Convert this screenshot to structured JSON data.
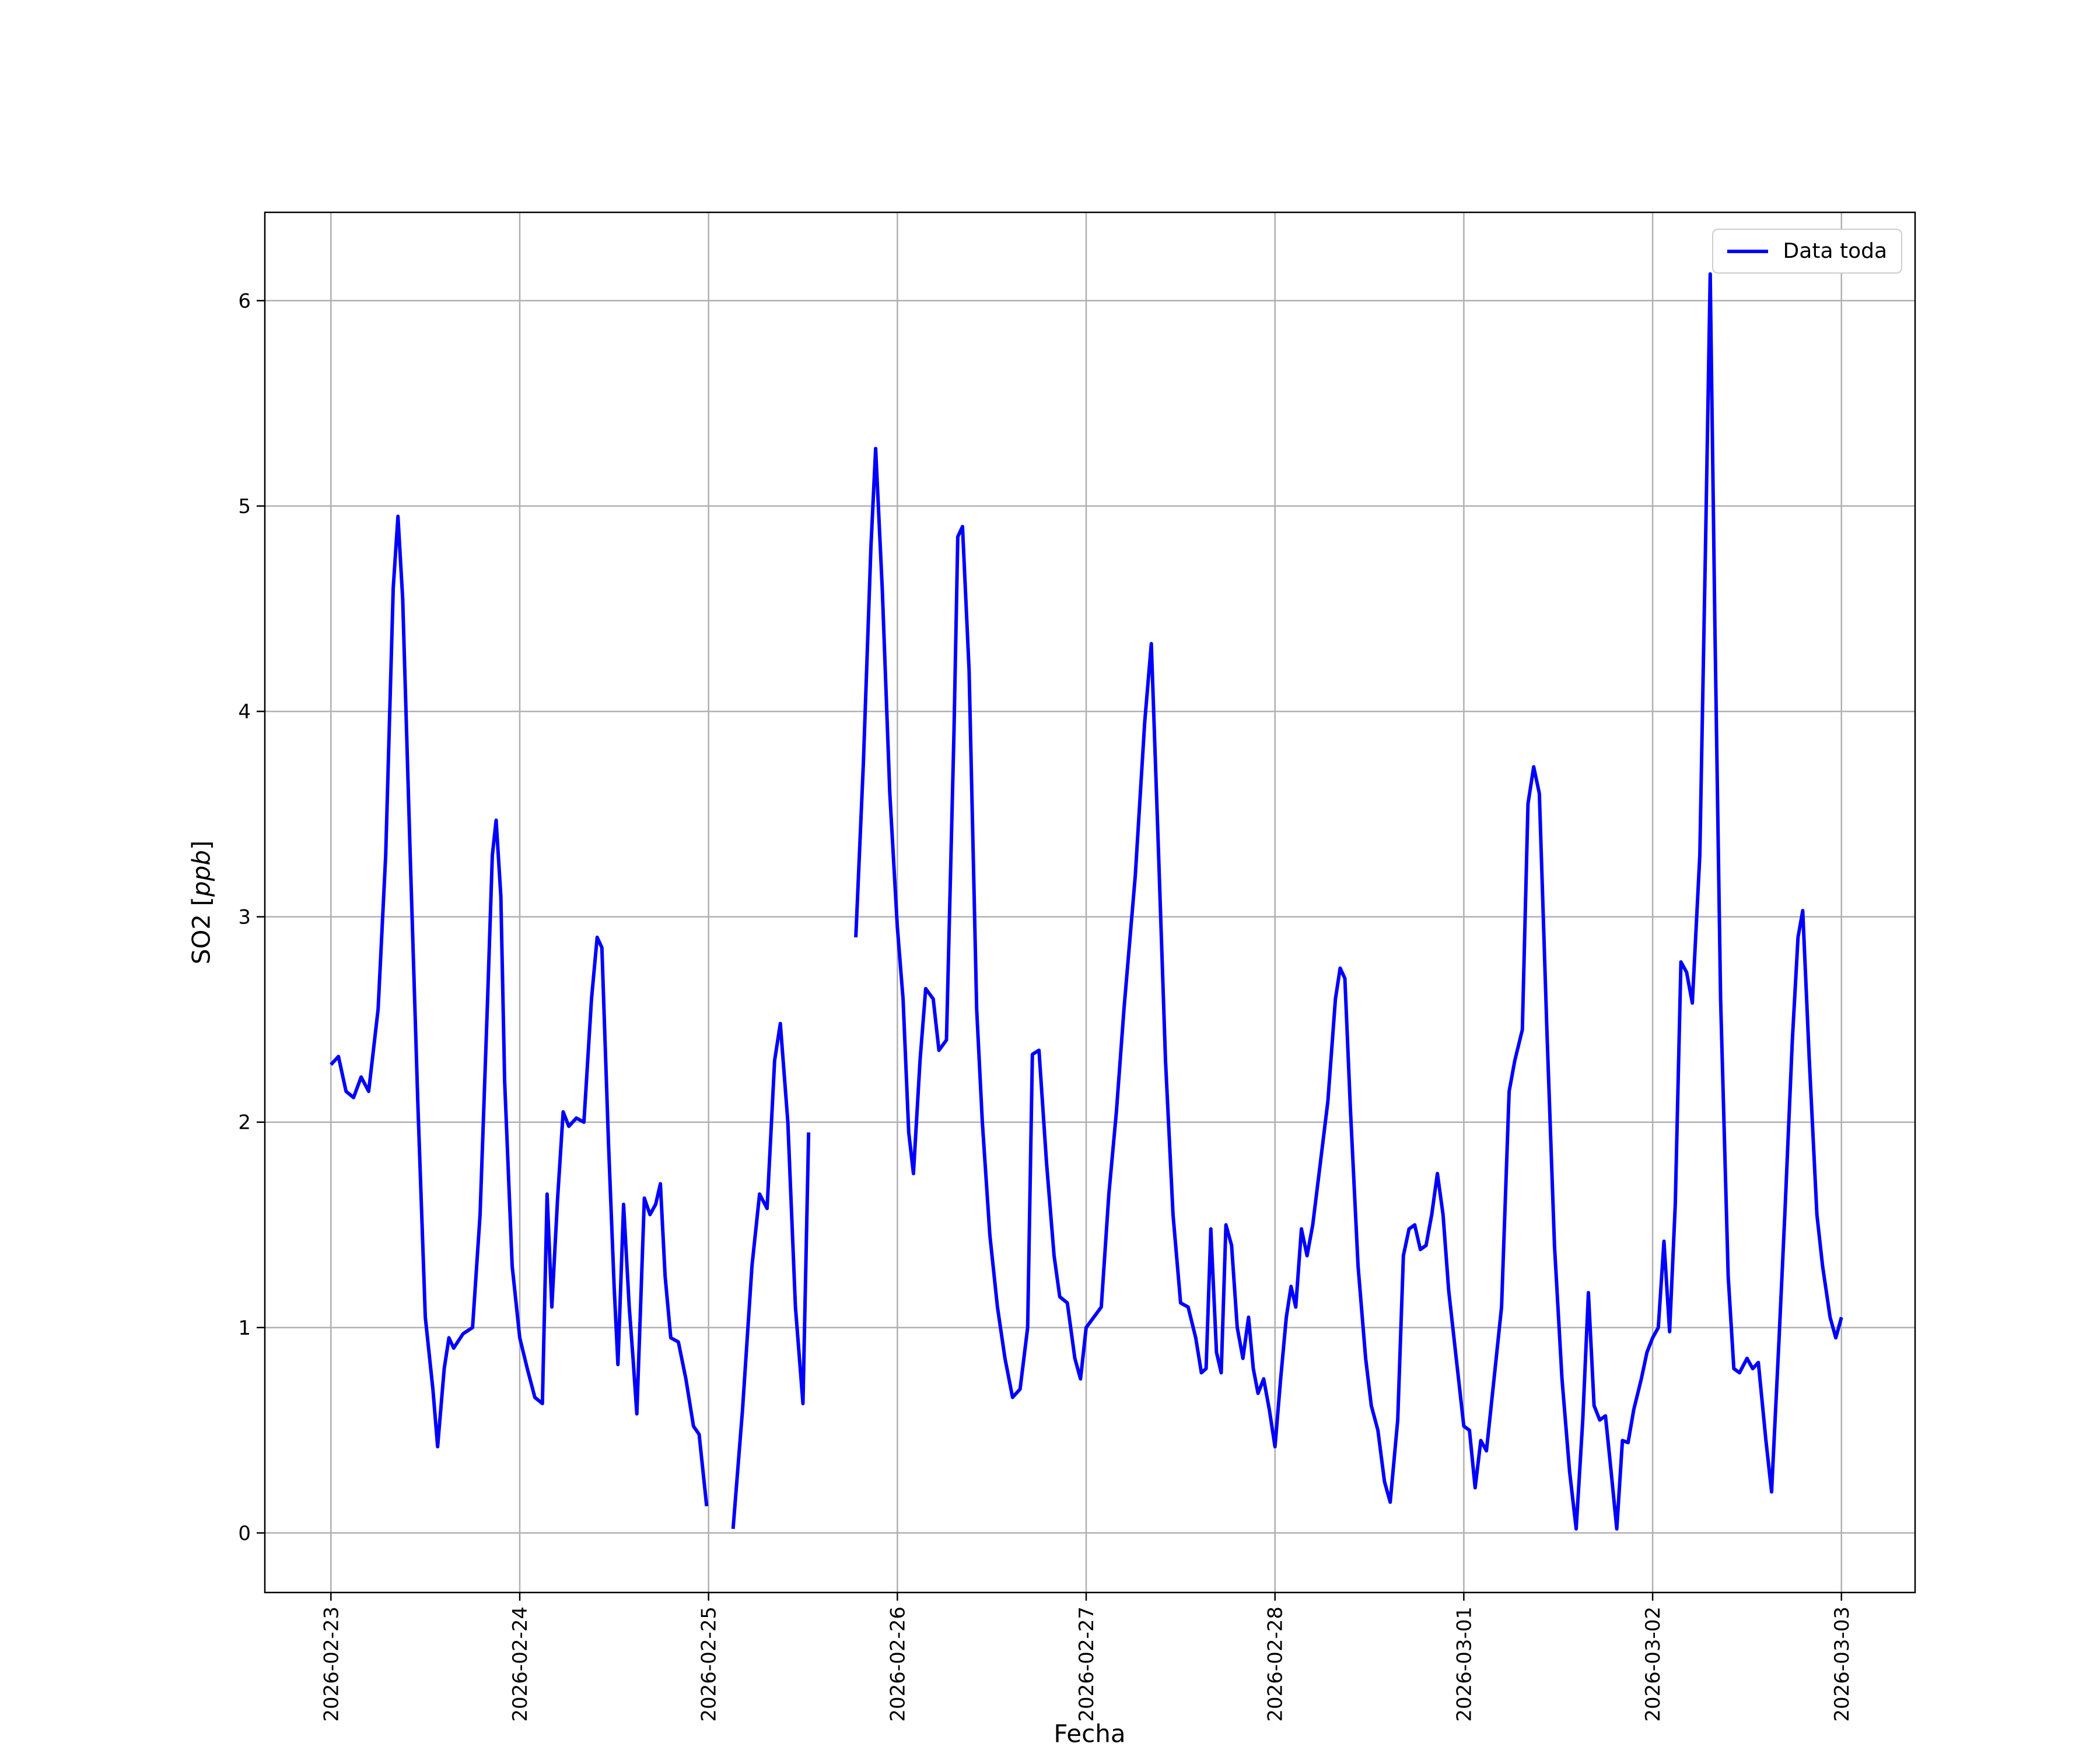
{
  "figure": {
    "background": "#ffffff",
    "xlabel": "Fecha",
    "ylabel_prefix": "SO2 [",
    "ylabel_italic": "ppb",
    "ylabel_suffix": "]"
  },
  "legend": {
    "label": "Data toda",
    "line_color": "#0000ff",
    "position": "upper right"
  },
  "chart_data": {
    "type": "line",
    "title": "",
    "xlabel": "Fecha",
    "ylabel": "SO2 [ppb]",
    "grid": true,
    "legend_position": "upper right",
    "xlim": [
      -0.35,
      8.39
    ],
    "ylim": [
      -0.29,
      6.43
    ],
    "x_ticks": {
      "positions": [
        0,
        1,
        2,
        3,
        4,
        5,
        6,
        7,
        8
      ],
      "labels": [
        "2026-02-23",
        "2026-02-24",
        "2026-02-25",
        "2026-02-26",
        "2026-02-27",
        "2026-02-28",
        "2026-03-01",
        "2026-03-02",
        "2026-03-03"
      ],
      "rotation": 90
    },
    "y_ticks": {
      "positions": [
        0,
        1,
        2,
        3,
        4,
        5,
        6
      ],
      "labels": [
        "0",
        "1",
        "2",
        "3",
        "4",
        "5",
        "6"
      ]
    },
    "series": [
      {
        "name": "Data toda",
        "color": "#0000ff",
        "x_unit": "days since 2026-02-23 00:00",
        "points": [
          [
            0.0,
            2.28
          ],
          [
            0.04,
            2.32
          ],
          [
            0.08,
            2.15
          ],
          [
            0.12,
            2.12
          ],
          [
            0.16,
            2.22
          ],
          [
            0.2,
            2.15
          ],
          [
            0.25,
            2.55
          ],
          [
            0.29,
            3.3
          ],
          [
            0.33,
            4.6
          ],
          [
            0.355,
            4.95
          ],
          [
            0.38,
            4.55
          ],
          [
            0.42,
            3.3
          ],
          [
            0.46,
            2.1
          ],
          [
            0.5,
            1.05
          ],
          [
            0.54,
            0.7
          ],
          [
            0.565,
            0.42
          ],
          [
            0.6,
            0.8
          ],
          [
            0.625,
            0.95
          ],
          [
            0.65,
            0.9
          ],
          [
            0.7,
            0.97
          ],
          [
            0.75,
            1.0
          ],
          [
            0.79,
            1.55
          ],
          [
            0.83,
            2.6
          ],
          [
            0.855,
            3.3
          ],
          [
            0.875,
            3.47
          ],
          [
            0.9,
            3.1
          ],
          [
            0.92,
            2.2
          ],
          [
            0.96,
            1.3
          ],
          [
            1.0,
            0.95
          ],
          [
            1.04,
            0.8
          ],
          [
            1.08,
            0.66
          ],
          [
            1.12,
            0.63
          ],
          [
            1.145,
            1.65
          ],
          [
            1.17,
            1.1
          ],
          [
            1.2,
            1.62
          ],
          [
            1.23,
            2.05
          ],
          [
            1.26,
            1.98
          ],
          [
            1.3,
            2.02
          ],
          [
            1.34,
            2.0
          ],
          [
            1.38,
            2.6
          ],
          [
            1.41,
            2.9
          ],
          [
            1.435,
            2.85
          ],
          [
            1.47,
            1.9
          ],
          [
            1.5,
            1.2
          ],
          [
            1.52,
            0.82
          ],
          [
            1.55,
            1.6
          ],
          [
            1.58,
            1.1
          ],
          [
            1.6,
            0.85
          ],
          [
            1.62,
            0.58
          ],
          [
            1.66,
            1.63
          ],
          [
            1.69,
            1.55
          ],
          [
            1.72,
            1.6
          ],
          [
            1.745,
            1.7
          ],
          [
            1.77,
            1.25
          ],
          [
            1.8,
            0.95
          ],
          [
            1.84,
            0.93
          ],
          [
            1.88,
            0.75
          ],
          [
            1.92,
            0.52
          ],
          [
            1.95,
            0.48
          ],
          [
            1.99,
            0.13
          ],
          null,
          [
            2.13,
            0.02
          ],
          [
            2.18,
            0.6
          ],
          [
            2.23,
            1.3
          ],
          [
            2.27,
            1.65
          ],
          [
            2.31,
            1.58
          ],
          [
            2.35,
            2.3
          ],
          [
            2.38,
            2.48
          ],
          [
            2.42,
            2.0
          ],
          [
            2.46,
            1.1
          ],
          [
            2.5,
            0.63
          ],
          [
            2.53,
            1.95
          ],
          null,
          [
            2.78,
            2.9
          ],
          [
            2.82,
            3.75
          ],
          [
            2.86,
            4.8
          ],
          [
            2.885,
            5.28
          ],
          [
            2.92,
            4.6
          ],
          [
            2.96,
            3.6
          ],
          [
            3.0,
            2.95
          ],
          [
            3.03,
            2.6
          ],
          [
            3.06,
            1.95
          ],
          [
            3.085,
            1.75
          ],
          [
            3.12,
            2.3
          ],
          [
            3.15,
            2.65
          ],
          [
            3.19,
            2.6
          ],
          [
            3.22,
            2.35
          ],
          [
            3.26,
            2.4
          ],
          [
            3.3,
            3.9
          ],
          [
            3.32,
            4.85
          ],
          [
            3.345,
            4.9
          ],
          [
            3.38,
            4.2
          ],
          [
            3.42,
            2.55
          ],
          [
            3.45,
            2.0
          ],
          [
            3.49,
            1.45
          ],
          [
            3.53,
            1.1
          ],
          [
            3.57,
            0.85
          ],
          [
            3.61,
            0.66
          ],
          [
            3.65,
            0.7
          ],
          [
            3.69,
            1.0
          ],
          [
            3.715,
            2.33
          ],
          [
            3.75,
            2.35
          ],
          [
            3.79,
            1.8
          ],
          [
            3.83,
            1.35
          ],
          [
            3.86,
            1.15
          ],
          [
            3.9,
            1.12
          ],
          [
            3.94,
            0.85
          ],
          [
            3.97,
            0.75
          ],
          [
            4.0,
            1.0
          ],
          [
            4.04,
            1.05
          ],
          [
            4.08,
            1.1
          ],
          [
            4.12,
            1.65
          ],
          [
            4.16,
            2.05
          ],
          [
            4.2,
            2.55
          ],
          [
            4.26,
            3.2
          ],
          [
            4.31,
            3.95
          ],
          [
            4.345,
            4.33
          ],
          [
            4.38,
            3.4
          ],
          [
            4.42,
            2.3
          ],
          [
            4.46,
            1.55
          ],
          [
            4.5,
            1.12
          ],
          [
            4.54,
            1.1
          ],
          [
            4.58,
            0.95
          ],
          [
            4.61,
            0.78
          ],
          [
            4.635,
            0.8
          ],
          [
            4.66,
            1.48
          ],
          [
            4.69,
            0.88
          ],
          [
            4.715,
            0.78
          ],
          [
            4.74,
            1.5
          ],
          [
            4.77,
            1.4
          ],
          [
            4.8,
            1.0
          ],
          [
            4.83,
            0.85
          ],
          [
            4.86,
            1.05
          ],
          [
            4.885,
            0.8
          ],
          [
            4.91,
            0.68
          ],
          [
            4.94,
            0.75
          ],
          [
            4.97,
            0.6
          ],
          [
            5.0,
            0.42
          ],
          [
            5.03,
            0.75
          ],
          [
            5.06,
            1.05
          ],
          [
            5.085,
            1.2
          ],
          [
            5.11,
            1.1
          ],
          [
            5.14,
            1.48
          ],
          [
            5.17,
            1.35
          ],
          [
            5.2,
            1.5
          ],
          [
            5.24,
            1.8
          ],
          [
            5.28,
            2.1
          ],
          [
            5.32,
            2.6
          ],
          [
            5.345,
            2.75
          ],
          [
            5.37,
            2.7
          ],
          [
            5.4,
            2.05
          ],
          [
            5.44,
            1.3
          ],
          [
            5.48,
            0.85
          ],
          [
            5.51,
            0.62
          ],
          [
            5.545,
            0.5
          ],
          [
            5.58,
            0.25
          ],
          [
            5.61,
            0.15
          ],
          [
            5.65,
            0.55
          ],
          [
            5.68,
            1.35
          ],
          [
            5.71,
            1.48
          ],
          [
            5.74,
            1.5
          ],
          [
            5.77,
            1.38
          ],
          [
            5.8,
            1.4
          ],
          [
            5.83,
            1.55
          ],
          [
            5.86,
            1.75
          ],
          [
            5.89,
            1.55
          ],
          [
            5.92,
            1.18
          ],
          [
            5.96,
            0.85
          ],
          [
            6.0,
            0.52
          ],
          [
            6.03,
            0.5
          ],
          [
            6.06,
            0.22
          ],
          [
            6.09,
            0.45
          ],
          [
            6.12,
            0.4
          ],
          [
            6.16,
            0.75
          ],
          [
            6.2,
            1.1
          ],
          [
            6.24,
            2.15
          ],
          [
            6.27,
            2.3
          ],
          [
            6.31,
            2.45
          ],
          [
            6.34,
            3.55
          ],
          [
            6.37,
            3.73
          ],
          [
            6.4,
            3.6
          ],
          [
            6.44,
            2.45
          ],
          [
            6.48,
            1.4
          ],
          [
            6.52,
            0.75
          ],
          [
            6.56,
            0.3
          ],
          [
            6.595,
            0.02
          ],
          [
            6.63,
            0.55
          ],
          [
            6.66,
            1.17
          ],
          [
            6.69,
            0.62
          ],
          [
            6.72,
            0.55
          ],
          [
            6.75,
            0.57
          ],
          [
            6.78,
            0.3
          ],
          [
            6.81,
            0.02
          ],
          [
            6.84,
            0.45
          ],
          [
            6.87,
            0.44
          ],
          [
            6.9,
            0.6
          ],
          [
            6.94,
            0.75
          ],
          [
            6.97,
            0.88
          ],
          [
            7.0,
            0.95
          ],
          [
            7.03,
            1.0
          ],
          [
            7.06,
            1.42
          ],
          [
            7.09,
            0.98
          ],
          [
            7.12,
            1.6
          ],
          [
            7.15,
            2.78
          ],
          [
            7.18,
            2.73
          ],
          [
            7.21,
            2.58
          ],
          [
            7.25,
            3.3
          ],
          [
            7.28,
            4.8
          ],
          [
            7.305,
            6.13
          ],
          [
            7.33,
            4.4
          ],
          [
            7.36,
            2.6
          ],
          [
            7.4,
            1.25
          ],
          [
            7.43,
            0.8
          ],
          [
            7.46,
            0.78
          ],
          [
            7.5,
            0.85
          ],
          [
            7.53,
            0.8
          ],
          [
            7.56,
            0.83
          ],
          [
            7.6,
            0.45
          ],
          [
            7.63,
            0.2
          ],
          [
            7.67,
            0.95
          ],
          [
            7.7,
            1.55
          ],
          [
            7.74,
            2.4
          ],
          [
            7.77,
            2.9
          ],
          [
            7.795,
            3.03
          ],
          [
            7.83,
            2.3
          ],
          [
            7.87,
            1.55
          ],
          [
            7.9,
            1.3
          ],
          [
            7.94,
            1.05
          ],
          [
            7.97,
            0.95
          ],
          [
            8.0,
            1.05
          ]
        ]
      }
    ]
  }
}
